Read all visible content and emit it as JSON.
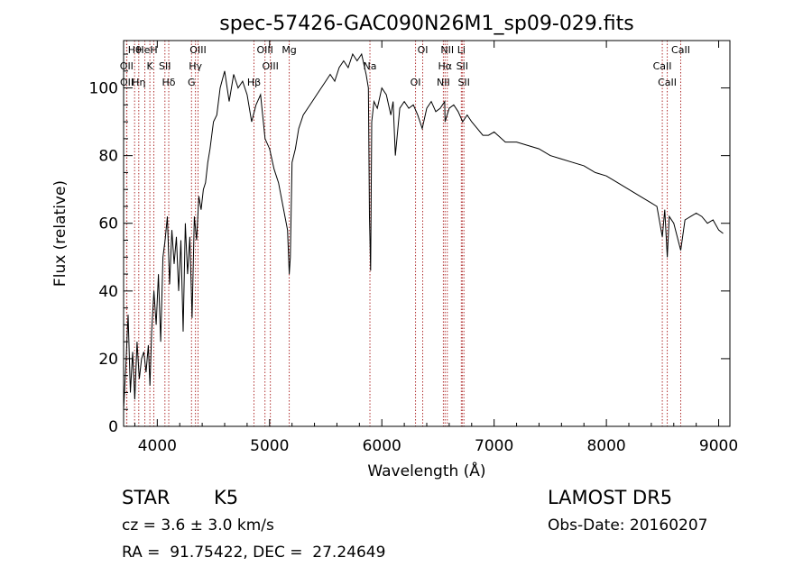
{
  "chart_data": {
    "type": "line",
    "title": "spec-57426-GAC090N26M1_sp09-029.fits",
    "xlabel": "Wavelength (Å)",
    "ylabel": "Flux (relative)",
    "xlim": [
      3700,
      9100
    ],
    "ylim": [
      0,
      114
    ],
    "xticks": [
      4000,
      5000,
      6000,
      7000,
      8000,
      9000
    ],
    "yticks": [
      0,
      20,
      40,
      60,
      80,
      100
    ],
    "grid": false,
    "colors": {
      "spectrum": "#000000",
      "lines": "#b03030"
    },
    "series": [
      {
        "x": [
          3700,
          3720,
          3740,
          3760,
          3780,
          3800,
          3820,
          3840,
          3860,
          3880,
          3900,
          3920,
          3935,
          3950,
          3970,
          3990,
          4010,
          4030,
          4050,
          4070,
          4090,
          4110,
          4130,
          4150,
          4170,
          4190,
          4210,
          4230,
          4250,
          4270,
          4290,
          4310,
          4330,
          4350,
          4370,
          4390,
          4410,
          4430,
          4450,
          4470,
          4500,
          4530,
          4560,
          4600,
          4640,
          4680,
          4720,
          4760,
          4800,
          4840,
          4880,
          4920,
          4960,
          5000,
          5040,
          5080,
          5120,
          5160,
          5175,
          5185,
          5200,
          5230,
          5260,
          5300,
          5340,
          5380,
          5420,
          5460,
          5500,
          5540,
          5580,
          5620,
          5660,
          5700,
          5740,
          5780,
          5820,
          5860,
          5880,
          5890,
          5900,
          5910,
          5930,
          5960,
          6000,
          6040,
          6080,
          6100,
          6120,
          6160,
          6200,
          6240,
          6280,
          6320,
          6360,
          6400,
          6440,
          6480,
          6520,
          6560,
          6563,
          6600,
          6640,
          6680,
          6720,
          6760,
          6800,
          6850,
          6900,
          6950,
          7000,
          7100,
          7200,
          7300,
          7400,
          7500,
          7600,
          7700,
          7800,
          7900,
          8000,
          8100,
          8200,
          8300,
          8400,
          8450,
          8498,
          8520,
          8542,
          8560,
          8600,
          8662,
          8700,
          8750,
          8800,
          8850,
          8900,
          8950,
          9000,
          9040
        ],
        "y": [
          5,
          18,
          33,
          10,
          22,
          8,
          25,
          14,
          20,
          22,
          16,
          24,
          12,
          28,
          40,
          30,
          45,
          25,
          50,
          55,
          62,
          42,
          58,
          48,
          56,
          40,
          55,
          28,
          60,
          45,
          56,
          32,
          62,
          55,
          68,
          64,
          70,
          72,
          78,
          82,
          90,
          92,
          100,
          105,
          96,
          104,
          100,
          102,
          98,
          90,
          95,
          98,
          85,
          82,
          76,
          72,
          65,
          58,
          45,
          50,
          78,
          82,
          88,
          92,
          94,
          96,
          98,
          100,
          102,
          104,
          102,
          106,
          108,
          106,
          110,
          108,
          110,
          104,
          100,
          62,
          46,
          90,
          96,
          94,
          100,
          98,
          92,
          96,
          80,
          94,
          96,
          94,
          95,
          92,
          88,
          94,
          96,
          93,
          94,
          96,
          90,
          94,
          95,
          93,
          90,
          92,
          90,
          88,
          86,
          86,
          87,
          84,
          84,
          83,
          82,
          80,
          79,
          78,
          77,
          75,
          74,
          72,
          70,
          68,
          66,
          65,
          56,
          64,
          50,
          62,
          60,
          52,
          61,
          62,
          63,
          62,
          60,
          61,
          58,
          57
        ]
      }
    ],
    "line_markers": [
      {
        "label": "Hθ",
        "wavelength": 3798
      },
      {
        "label": "OII",
        "wavelength": 3727
      },
      {
        "label": "OII",
        "wavelength": 3729
      },
      {
        "label": "HeI",
        "wavelength": 3889
      },
      {
        "label": "K",
        "wavelength": 3934
      },
      {
        "label": "Hη",
        "wavelength": 3835
      },
      {
        "label": "H",
        "wavelength": 3969
      },
      {
        "label": "SII",
        "wavelength": 4068
      },
      {
        "label": "Hδ",
        "wavelength": 4102
      },
      {
        "label": "OIII",
        "wavelength": 4363
      },
      {
        "label": "Hγ",
        "wavelength": 4340
      },
      {
        "label": "G",
        "wavelength": 4305
      },
      {
        "label": "OIII",
        "wavelength": 4959
      },
      {
        "label": "OIII",
        "wavelength": 5007
      },
      {
        "label": "Hβ",
        "wavelength": 4861
      },
      {
        "label": "Mg",
        "wavelength": 5175
      },
      {
        "label": "Na",
        "wavelength": 5894
      },
      {
        "label": "OI",
        "wavelength": 6300
      },
      {
        "label": "OI",
        "wavelength": 6364
      },
      {
        "label": "Hα",
        "wavelength": 6563
      },
      {
        "label": "NII",
        "wavelength": 6548
      },
      {
        "label": "NII",
        "wavelength": 6583
      },
      {
        "label": "SII",
        "wavelength": 6716
      },
      {
        "label": "SII",
        "wavelength": 6731
      },
      {
        "label": "Li",
        "wavelength": 6708
      },
      {
        "label": "CaII",
        "wavelength": 8498
      },
      {
        "label": "CaII",
        "wavelength": 8542
      },
      {
        "label": "CaII",
        "wavelength": 8662
      }
    ]
  },
  "info": {
    "class": "STAR",
    "subclass": "K5",
    "survey": "LAMOST DR5",
    "cz": "cz = 3.6 ± 3.0 km/s",
    "obs_date": "Obs-Date: 20160207",
    "radec": "RA =  91.75422, DEC =  27.24649"
  }
}
